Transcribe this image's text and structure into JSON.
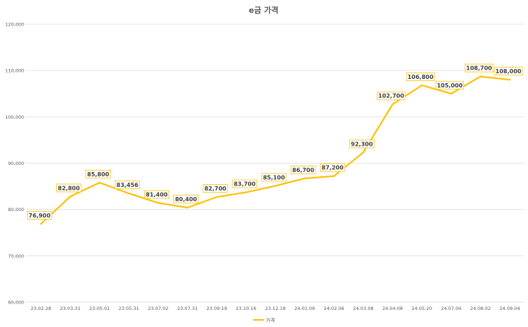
{
  "chart_data": {
    "type": "line",
    "title": "e금 가격",
    "xlabel": "",
    "ylabel": "",
    "ylim": [
      60000,
      120000
    ],
    "y_ticks": [
      60000,
      70000,
      80000,
      90000,
      100000,
      110000,
      120000
    ],
    "y_tick_labels": [
      "60,000",
      "70,000",
      "80,000",
      "90,000",
      "100,000",
      "110,000",
      "120,000"
    ],
    "grid": true,
    "legend_position": "bottom",
    "categories": [
      "23.02.28",
      "23.03.31",
      "23.05.01",
      "23.05.31",
      "23.07.02",
      "23.07.31",
      "23.09.19",
      "23.10.16",
      "23.12.18",
      "24.01.09",
      "24.02.06",
      "24.03.08",
      "24.04.08",
      "24.05.20",
      "24.07.04",
      "24.08.02",
      "24.09.04"
    ],
    "series": [
      {
        "name": "가격",
        "color": "#ffc000",
        "values": [
          76900,
          82800,
          85800,
          83456,
          81400,
          80400,
          82700,
          83700,
          85100,
          86700,
          87200,
          92300,
          102700,
          106800,
          105000,
          108700,
          108000
        ],
        "data_labels": [
          "76,900",
          "82,800",
          "85,800",
          "83,456",
          "81,400",
          "80,400",
          "82,700",
          "83,700",
          "85,100",
          "86,700",
          "87,200",
          "92,300",
          "102,700",
          "106,800",
          "105,000",
          "108,700",
          "108,000"
        ]
      }
    ]
  }
}
